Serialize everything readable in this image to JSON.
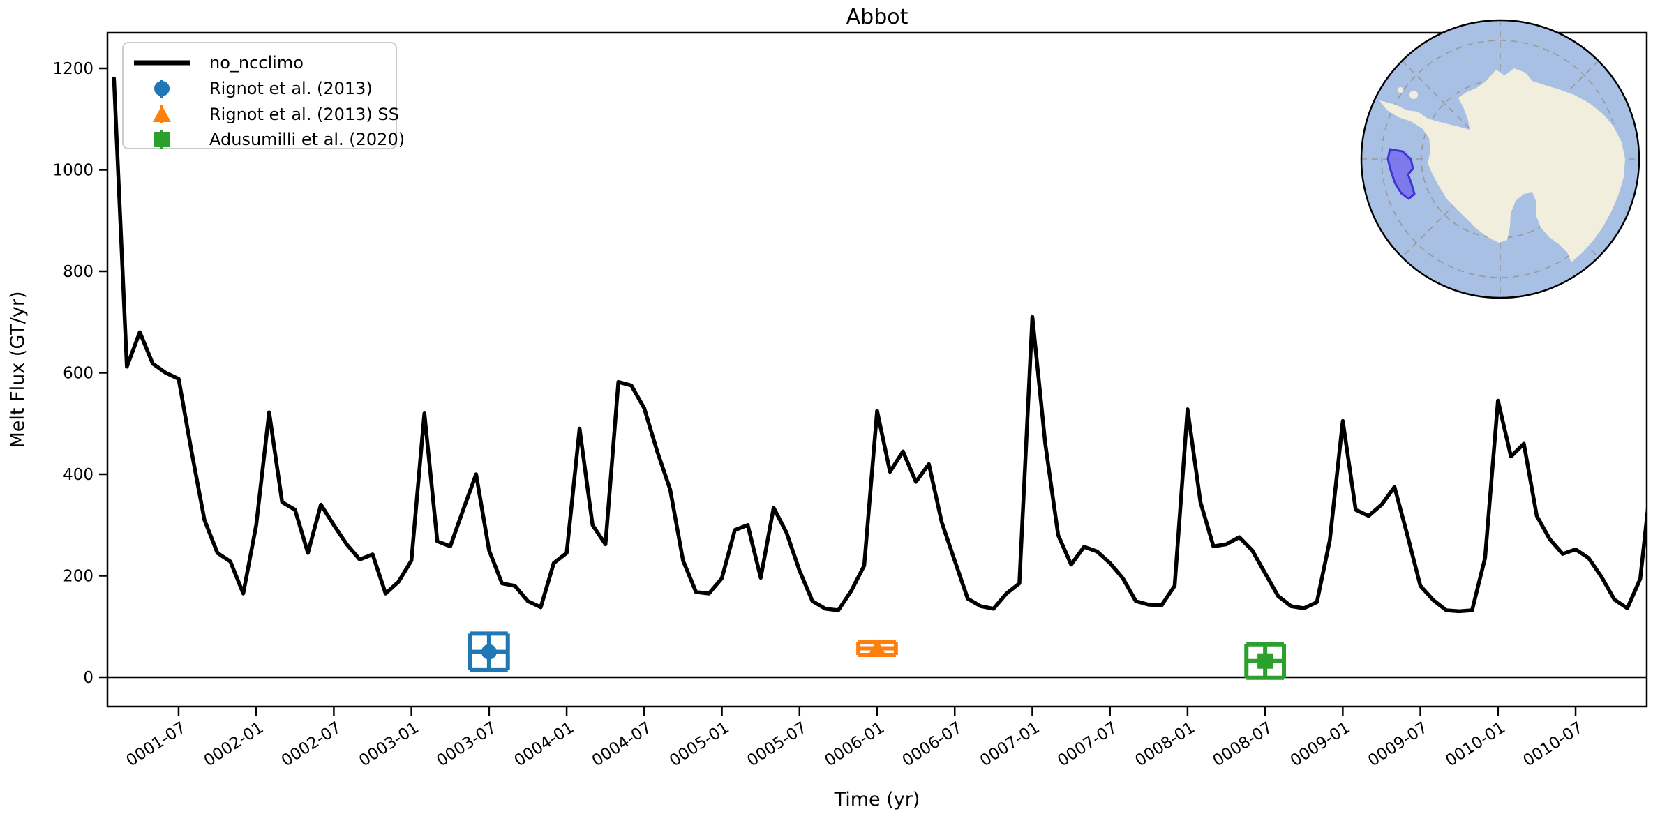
{
  "title": "Abbot",
  "axes": {
    "xlabel": "Time (yr)",
    "ylabel": "Melt Flux (GT/yr)"
  },
  "legend": {
    "items": [
      {
        "label": "no_ncclimo",
        "type": "line",
        "color": "#000000"
      },
      {
        "label": "Rignot et al. (2013)",
        "type": "circle",
        "color": "#1f77b4"
      },
      {
        "label": "Rignot et al. (2013) SS",
        "type": "triangle-up",
        "color": "#ff7f0e"
      },
      {
        "label": "Adusumilli et al. (2020)",
        "type": "square",
        "color": "#2ca02c"
      }
    ]
  },
  "inset_map": {
    "region_name": "Abbot",
    "ocean_color": "#a7c0e4",
    "land_color": "#f1eedd",
    "grid_color": "#999999",
    "rim_color": "#000000",
    "region_fill": "#7468ec",
    "region_stroke": "#3c35d8"
  },
  "chart_data": {
    "type": "line",
    "title": "Abbot",
    "xlabel": "Time (yr)",
    "ylabel": "Melt Flux (GT/yr)",
    "grid": false,
    "legend_position": "upper left",
    "ylim": [
      -58,
      1270
    ],
    "xlim": [
      "0001-01",
      "0011-01"
    ],
    "zero_line": true,
    "y_ticks": [
      0,
      200,
      400,
      600,
      800,
      1000,
      1200
    ],
    "x_tick_labels": [
      "0001-07",
      "0002-01",
      "0002-07",
      "0003-01",
      "0003-07",
      "0004-01",
      "0004-07",
      "0005-01",
      "0005-07",
      "0006-01",
      "0006-07",
      "0007-01",
      "0007-07",
      "0008-01",
      "0008-07",
      "0009-01",
      "0009-07",
      "0010-01",
      "0010-07"
    ],
    "series": [
      {
        "name": "no_ncclimo",
        "color": "#000000",
        "x": [
          "0001-02",
          "0001-03",
          "0001-04",
          "0001-05",
          "0001-06",
          "0001-07",
          "0001-08",
          "0001-09",
          "0001-10",
          "0001-11",
          "0001-12",
          "0002-01",
          "0002-02",
          "0002-03",
          "0002-04",
          "0002-05",
          "0002-06",
          "0002-07",
          "0002-08",
          "0002-09",
          "0002-10",
          "0002-11",
          "0002-12",
          "0003-01",
          "0003-02",
          "0003-03",
          "0003-04",
          "0003-05",
          "0003-06",
          "0003-07",
          "0003-08",
          "0003-09",
          "0003-10",
          "0003-11",
          "0003-12",
          "0004-01",
          "0004-02",
          "0004-03",
          "0004-04",
          "0004-05",
          "0004-06",
          "0004-07",
          "0004-08",
          "0004-09",
          "0004-10",
          "0004-11",
          "0004-12",
          "0005-01",
          "0005-02",
          "0005-03",
          "0005-04",
          "0005-05",
          "0005-06",
          "0005-07",
          "0005-08",
          "0005-09",
          "0005-10",
          "0005-11",
          "0005-12",
          "0006-01",
          "0006-02",
          "0006-03",
          "0006-04",
          "0006-05",
          "0006-06",
          "0006-07",
          "0006-08",
          "0006-09",
          "0006-10",
          "0006-11",
          "0006-12",
          "0007-01",
          "0007-02",
          "0007-03",
          "0007-04",
          "0007-05",
          "0007-06",
          "0007-07",
          "0007-08",
          "0007-09",
          "0007-10",
          "0007-11",
          "0007-12",
          "0008-01",
          "0008-02",
          "0008-03",
          "0008-04",
          "0008-05",
          "0008-06",
          "0008-07",
          "0008-08",
          "0008-09",
          "0008-10",
          "0008-11",
          "0008-12",
          "0009-01",
          "0009-02",
          "0009-03",
          "0009-04",
          "0009-05",
          "0009-06",
          "0009-07",
          "0009-08",
          "0009-09",
          "0009-10",
          "0009-11",
          "0009-12",
          "0010-01",
          "0010-02",
          "0010-03",
          "0010-04",
          "0010-05",
          "0010-06",
          "0010-07",
          "0010-08",
          "0010-09",
          "0010-10",
          "0010-11",
          "0010-12",
          "0011-01"
        ],
        "values": [
          1180,
          612,
          680,
          618,
          600,
          588,
          445,
          310,
          245,
          228,
          165,
          300,
          522,
          345,
          330,
          245,
          340,
          300,
          262,
          232,
          242,
          165,
          188,
          230,
          520,
          268,
          258,
          330,
          400,
          250,
          185,
          180,
          150,
          138,
          225,
          245,
          490,
          300,
          262,
          582,
          575,
          530,
          445,
          370,
          230,
          168,
          165,
          195,
          290,
          300,
          196,
          334,
          285,
          210,
          150,
          135,
          132,
          170,
          220,
          525,
          405,
          445,
          385,
          420,
          305,
          230,
          155,
          140,
          135,
          165,
          185,
          710,
          460,
          280,
          222,
          257,
          248,
          225,
          195,
          150,
          143,
          142,
          180,
          528,
          345,
          258,
          262,
          276,
          250,
          205,
          160,
          140,
          136,
          148,
          270,
          505,
          330,
          318,
          340,
          375,
          280,
          180,
          152,
          132,
          130,
          132,
          235,
          545,
          435,
          460,
          318,
          272,
          243,
          252,
          235,
          198,
          153,
          136,
          194,
          430
        ]
      }
    ],
    "observations": [
      {
        "label": "Rignot et al. (2013)",
        "time": "0003-07",
        "value": 50,
        "xerr_months": 1.45,
        "yerr": 36,
        "color": "#1f77b4",
        "marker": "circle"
      },
      {
        "label": "Rignot et al. (2013) SS",
        "time": "0006-01",
        "value": 57,
        "xerr_months": 1.45,
        "yerr": 13,
        "color": "#ff7f0e",
        "marker": "triangle-up"
      },
      {
        "label": "Adusumilli et al. (2020)",
        "time": "0008-07",
        "value": 32,
        "xerr_months": 1.45,
        "yerr": 33,
        "color": "#2ca02c",
        "marker": "square"
      }
    ]
  }
}
